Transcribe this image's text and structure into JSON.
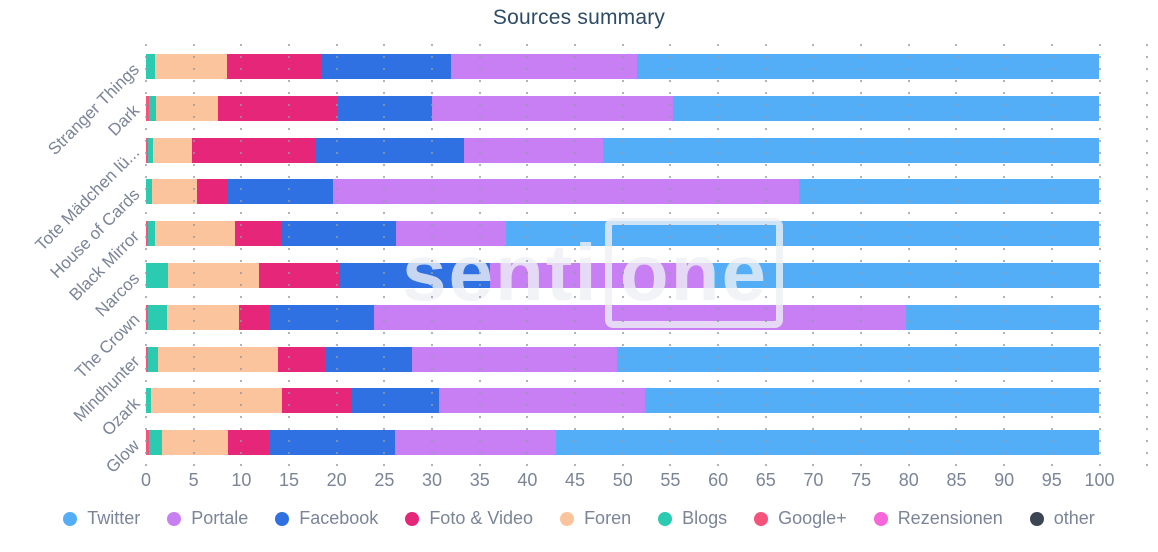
{
  "title": "Sources summary",
  "watermark": {
    "part1": "senti",
    "part2": "one"
  },
  "axis": {
    "tick_labels": [
      "0",
      "5",
      "10",
      "15",
      "20",
      "25",
      "30",
      "35",
      "40",
      "45",
      "50",
      "55",
      "60",
      "65",
      "70",
      "75",
      "80",
      "85",
      "90",
      "95",
      "100"
    ],
    "tick_step": 5,
    "extra_gridline_at": 105
  },
  "legend": [
    {
      "label": "Twitter",
      "color": "#54adf7"
    },
    {
      "label": "Portale",
      "color": "#c87ff3"
    },
    {
      "label": "Facebook",
      "color": "#2f71e2"
    },
    {
      "label": "Foto & Video",
      "color": "#e62678"
    },
    {
      "label": "Foren",
      "color": "#fcc49c"
    },
    {
      "label": "Blogs",
      "color": "#2bcbb1"
    },
    {
      "label": "Google+",
      "color": "#f5537b"
    },
    {
      "label": "Rezensionen",
      "color": "#f767d9"
    },
    {
      "label": "other",
      "color": "#3c4552"
    }
  ],
  "chart_data": {
    "type": "bar",
    "orientation": "horizontal",
    "stacked": true,
    "title": "Sources summary",
    "xlabel": "",
    "ylabel": "",
    "xlim": [
      0,
      100
    ],
    "grid": "dotted-vertical",
    "legend_position": "bottom",
    "categories": [
      "Stranger Things",
      "Dark",
      "Tote Mädchen lü...",
      "House of Cards",
      "Black Mirror",
      "Narcos",
      "The Crown",
      "Mindhunter",
      "Ozark",
      "Glow"
    ],
    "stack_order": [
      "Google+",
      "Blogs",
      "Foren",
      "Foto & Video",
      "Facebook",
      "Portale",
      "Twitter",
      "Rezensionen",
      "other"
    ],
    "series": [
      {
        "name": "Google+",
        "color": "#f5537b",
        "values": [
          0,
          0.3,
          0.2,
          0,
          0.2,
          0,
          0.2,
          0.2,
          0,
          0.3
        ]
      },
      {
        "name": "Blogs",
        "color": "#2bcbb1",
        "values": [
          0.9,
          0.7,
          0.5,
          0.6,
          0.7,
          2.3,
          2.0,
          1.1,
          0.5,
          1.4
        ]
      },
      {
        "name": "Foren",
        "color": "#fcc49c",
        "values": [
          7.6,
          6.6,
          4.1,
          4.7,
          8.4,
          9.5,
          7.6,
          12.5,
          13.8,
          6.9
        ]
      },
      {
        "name": "Foto & Video",
        "color": "#e62678",
        "values": [
          10.0,
          12.4,
          12.9,
          3.2,
          5.0,
          8.5,
          3.1,
          5.1,
          7.2,
          4.4
        ]
      },
      {
        "name": "Facebook",
        "color": "#2f71e2",
        "values": [
          13.5,
          10.0,
          15.7,
          11.1,
          11.9,
          15.8,
          11.0,
          9.0,
          9.2,
          13.1
        ]
      },
      {
        "name": "Portale",
        "color": "#c87ff3",
        "values": [
          19.5,
          25.3,
          14.5,
          48.9,
          11.6,
          23.2,
          55.8,
          21.5,
          21.6,
          16.9
        ]
      },
      {
        "name": "Twitter",
        "color": "#54adf7",
        "values": [
          48.5,
          44.7,
          52.1,
          31.5,
          62.2,
          40.7,
          20.3,
          50.6,
          47.7,
          57.0
        ]
      },
      {
        "name": "Rezensionen",
        "color": "#f767d9",
        "values": [
          0,
          0,
          0,
          0,
          0,
          0,
          0,
          0,
          0,
          0
        ]
      },
      {
        "name": "other",
        "color": "#3c4552",
        "values": [
          0,
          0,
          0,
          0,
          0,
          0,
          0,
          0,
          0,
          0
        ]
      }
    ]
  }
}
